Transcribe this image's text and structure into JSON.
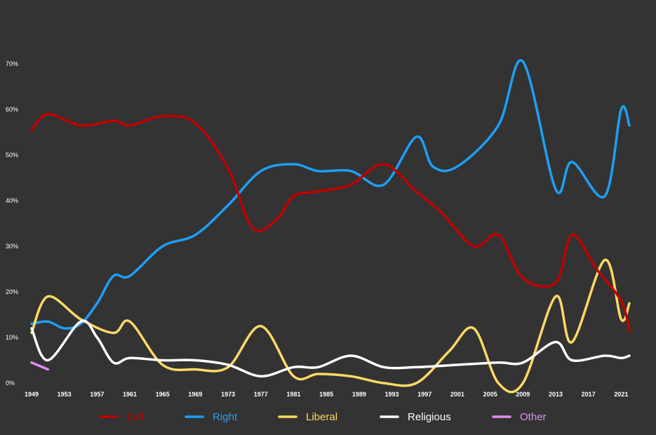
{
  "chart_data": {
    "type": "line",
    "title": "",
    "xlabel": "",
    "ylabel": "",
    "ylim": [
      0,
      70
    ],
    "xlim": [
      1949,
      2022
    ],
    "grid": false,
    "legend_position": "bottom",
    "y_ticks": [
      "0%",
      "10%",
      "20%",
      "30%",
      "40%",
      "50%",
      "60%",
      "70%"
    ],
    "x_ticks": [
      "1949",
      "1953",
      "1957",
      "1961",
      "1965",
      "1969",
      "1973",
      "1977",
      "1981",
      "1985",
      "1989",
      "1993",
      "1997",
      "2001",
      "2005",
      "2009",
      "2013",
      "2017",
      "2021"
    ],
    "series": [
      {
        "name": "Left",
        "color": "#c00000",
        "x": [
          1949,
          1951,
          1955,
          1959,
          1961,
          1965,
          1969,
          1973,
          1976,
          1979,
          1981,
          1984,
          1988,
          1992,
          1996,
          1999,
          2003,
          2006,
          2009,
          2013,
          2015,
          2018,
          2021,
          2022
        ],
        "y": [
          55.5,
          59,
          56.5,
          57.5,
          56.5,
          58.5,
          57,
          47,
          34,
          36,
          41,
          42,
          43.5,
          48,
          42,
          37.5,
          30,
          32.5,
          23,
          22,
          32.5,
          25,
          18,
          11.5
        ]
      },
      {
        "name": "Right",
        "color": "#1e9ff5",
        "x": [
          1949,
          1951,
          1953,
          1955,
          1957,
          1959,
          1961,
          1965,
          1969,
          1973,
          1977,
          1981,
          1984,
          1988,
          1992,
          1996,
          1998,
          2001,
          2006,
          2009,
          2013,
          2015,
          2019,
          2021,
          2022
        ],
        "y": [
          13,
          13.5,
          12,
          13,
          17.5,
          23.5,
          23.5,
          30,
          32.5,
          39,
          46.5,
          48,
          46.5,
          46.5,
          43.5,
          54,
          47.5,
          47.5,
          56.5,
          70.5,
          42.5,
          48.5,
          41,
          60,
          56.5
        ]
      },
      {
        "name": "Liberal",
        "color": "#ffd966",
        "x": [
          1949,
          1951,
          1955,
          1959,
          1961,
          1965,
          1969,
          1973,
          1977,
          1981,
          1984,
          1988,
          1992,
          1996,
          2000,
          2003,
          2006,
          2009,
          2013,
          2015,
          2019,
          2021,
          2022
        ],
        "y": [
          11,
          19,
          14,
          11,
          13.5,
          4,
          3,
          3.5,
          12.5,
          1.5,
          2,
          1.5,
          0,
          0,
          7,
          12,
          0,
          0,
          19,
          9,
          27,
          14,
          17.5
        ]
      },
      {
        "name": "Religious",
        "color": "#ffffff",
        "x": [
          1949,
          1951,
          1955,
          1957,
          1959,
          1961,
          1965,
          1969,
          1973,
          1977,
          1981,
          1984,
          1988,
          1992,
          1996,
          2001,
          2006,
          2009,
          2013,
          2015,
          2019,
          2021,
          2022
        ],
        "y": [
          12,
          5,
          13.5,
          10,
          4.5,
          5.5,
          5,
          5,
          4,
          1.5,
          3.5,
          3.5,
          6,
          3.5,
          3.5,
          4,
          4.5,
          4.5,
          9,
          5,
          6,
          5.5,
          6
        ]
      },
      {
        "name": "Other",
        "color": "#df8eee",
        "x": [
          1949,
          1951
        ],
        "y": [
          4.5,
          3
        ]
      }
    ]
  }
}
